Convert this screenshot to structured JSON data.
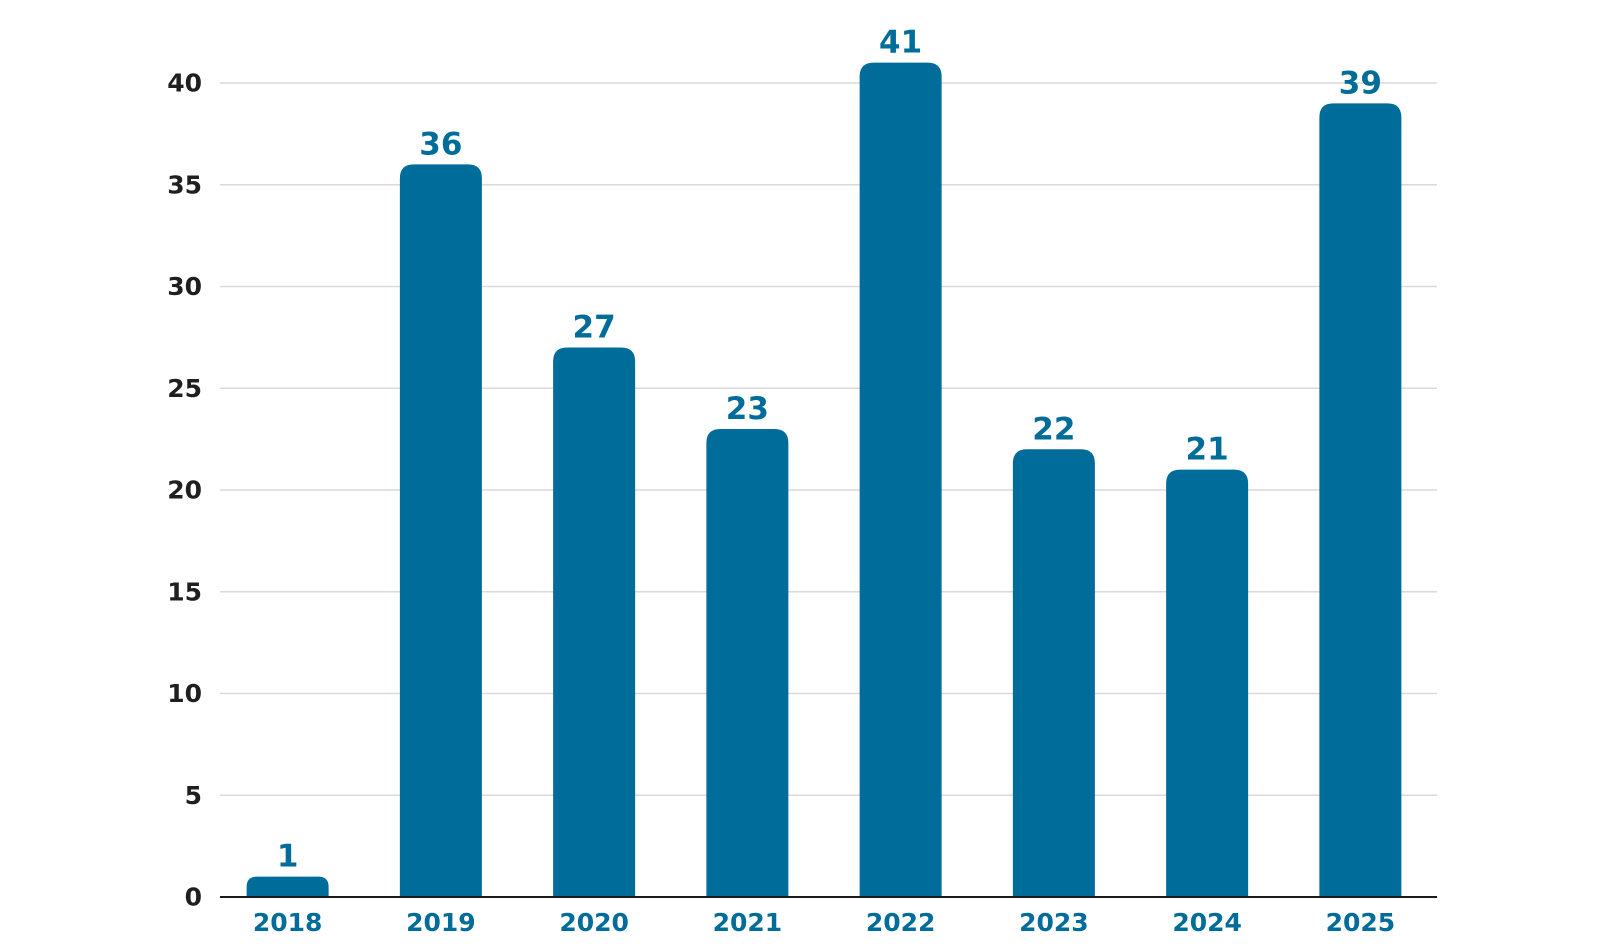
{
  "chart_data": {
    "type": "bar",
    "title": "",
    "xlabel": "",
    "ylabel": "",
    "categories": [
      "2018",
      "2019",
      "2020",
      "2021",
      "2022",
      "2023",
      "2024",
      "2025"
    ],
    "values": [
      1,
      36,
      27,
      23,
      41,
      22,
      21,
      39
    ],
    "ylim": [
      0,
      40
    ],
    "yticks": [
      0,
      5,
      10,
      15,
      20,
      25,
      30,
      35,
      40
    ],
    "grid": true,
    "legend": "none",
    "bar_color": "#006c9a",
    "tick_label_color_x": "#006c9a",
    "tick_label_color_y": "#1f1f1f",
    "data_label_color": "#006c9a"
  }
}
